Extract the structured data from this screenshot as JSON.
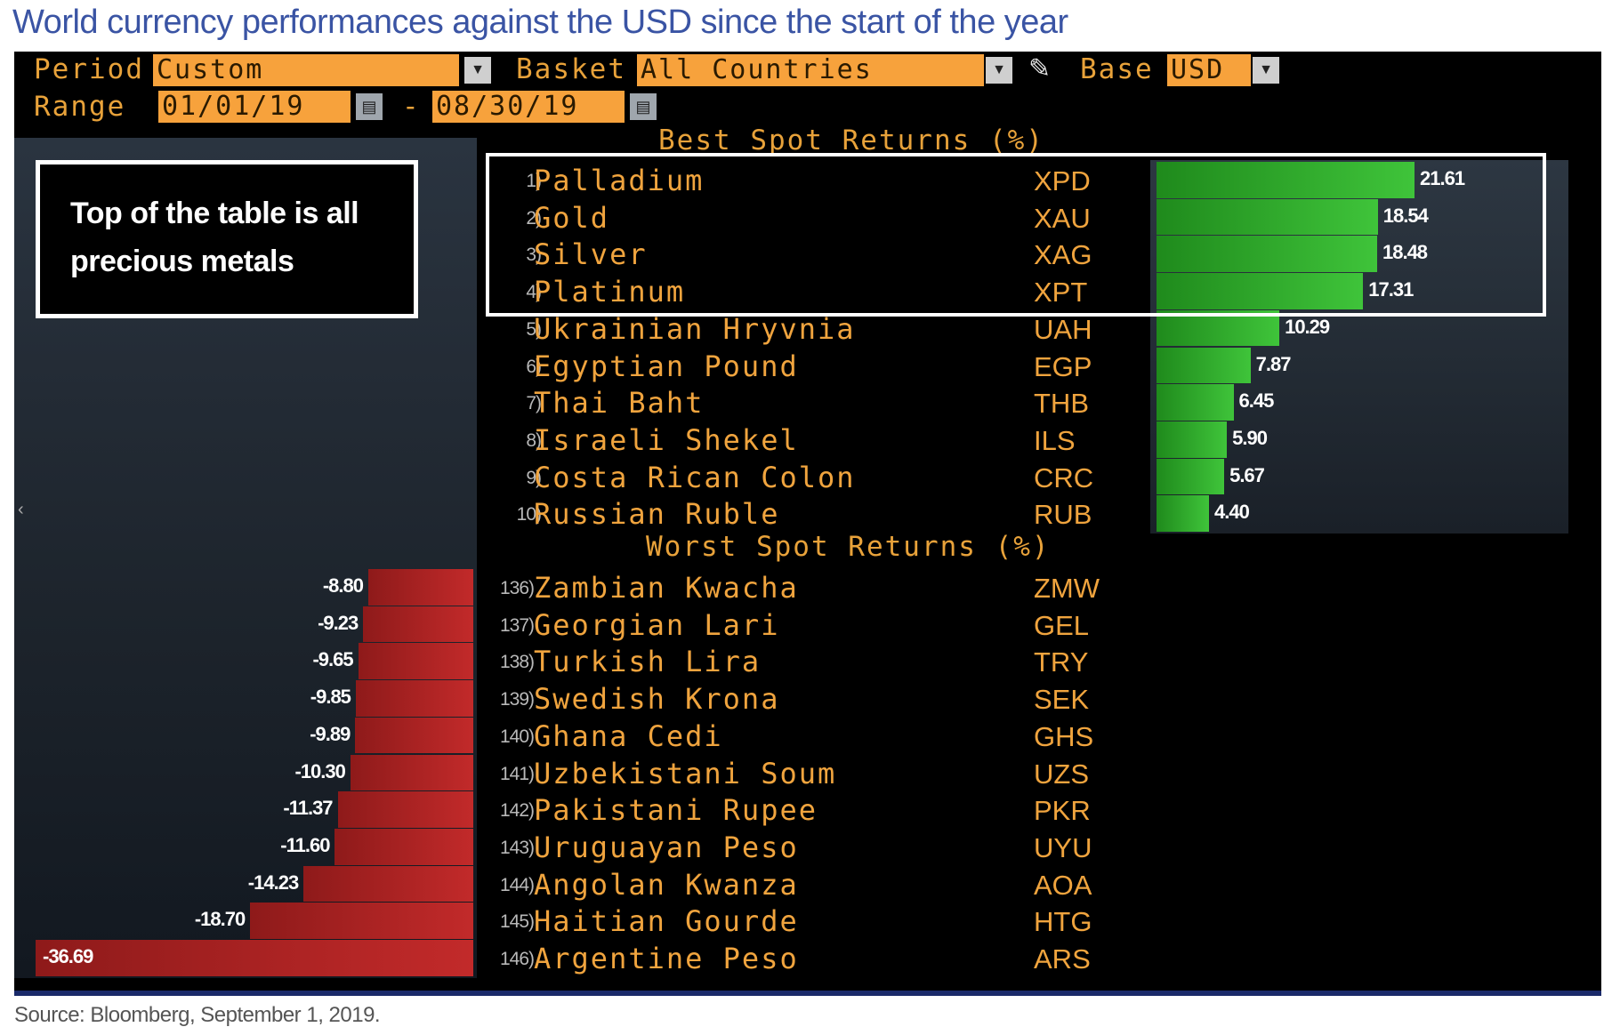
{
  "title": "World currency performances against the USD since the start of the year",
  "toolbar": {
    "period_label": "Period",
    "period_value": "Custom",
    "basket_label": "Basket",
    "basket_value": "All Countries",
    "base_label": "Base",
    "base_value": "USD",
    "range_label": "Range",
    "range_start": "01/01/19",
    "range_sep": "-",
    "range_end": "08/30/19"
  },
  "best": {
    "heading": "Best Spot Returns (%)",
    "rows": [
      {
        "rank": "1)",
        "name": "Palladium",
        "code": "XPD",
        "value": "21.61",
        "num": 21.61
      },
      {
        "rank": "2)",
        "name": "Gold",
        "code": "XAU",
        "value": "18.54",
        "num": 18.54
      },
      {
        "rank": "3)",
        "name": "Silver",
        "code": "XAG",
        "value": "18.48",
        "num": 18.48
      },
      {
        "rank": "4)",
        "name": "Platinum",
        "code": "XPT",
        "value": "17.31",
        "num": 17.31
      },
      {
        "rank": "5)",
        "name": "Ukrainian Hryvnia",
        "code": "UAH",
        "value": "10.29",
        "num": 10.29
      },
      {
        "rank": "6)",
        "name": "Egyptian Pound",
        "code": "EGP",
        "value": "7.87",
        "num": 7.87
      },
      {
        "rank": "7)",
        "name": "Thai Baht",
        "code": "THB",
        "value": "6.45",
        "num": 6.45
      },
      {
        "rank": "8)",
        "name": "Israeli Shekel",
        "code": "ILS",
        "value": "5.90",
        "num": 5.9
      },
      {
        "rank": "9)",
        "name": "Costa Rican Colon",
        "code": "CRC",
        "value": "5.67",
        "num": 5.67
      },
      {
        "rank": "10)",
        "name": "Russian Ruble",
        "code": "RUB",
        "value": "4.40",
        "num": 4.4
      }
    ]
  },
  "worst": {
    "heading": "Worst Spot Returns (%)",
    "rows": [
      {
        "rank": "136)",
        "name": "Zambian Kwacha",
        "code": "ZMW",
        "value": "-8.80",
        "num": -8.8
      },
      {
        "rank": "137)",
        "name": "Georgian Lari",
        "code": "GEL",
        "value": "-9.23",
        "num": -9.23
      },
      {
        "rank": "138)",
        "name": "Turkish Lira",
        "code": "TRY",
        "value": "-9.65",
        "num": -9.65
      },
      {
        "rank": "139)",
        "name": "Swedish Krona",
        "code": "SEK",
        "value": "-9.85",
        "num": -9.85
      },
      {
        "rank": "140)",
        "name": "Ghana Cedi",
        "code": "GHS",
        "value": "-9.89",
        "num": -9.89
      },
      {
        "rank": "141)",
        "name": "Uzbekistani Soum",
        "code": "UZS",
        "value": "-10.30",
        "num": -10.3
      },
      {
        "rank": "142)",
        "name": "Pakistani Rupee",
        "code": "PKR",
        "value": "-11.37",
        "num": -11.37
      },
      {
        "rank": "143)",
        "name": "Uruguayan Peso",
        "code": "UYU",
        "value": "-11.60",
        "num": -11.6
      },
      {
        "rank": "144)",
        "name": "Angolan Kwanza",
        "code": "AOA",
        "value": "-14.23",
        "num": -14.23
      },
      {
        "rank": "145)",
        "name": "Haitian Gourde",
        "code": "HTG",
        "value": "-18.70",
        "num": -18.7
      },
      {
        "rank": "146)",
        "name": "Argentine Peso",
        "code": "ARS",
        "value": "-36.69",
        "num": -36.69
      }
    ]
  },
  "callout": {
    "text": "Top of the table is all precious metals"
  },
  "source": "Source: Bloomberg, September 1, 2019.",
  "colors": {
    "title": "#3a54a4",
    "orange": "#f0a43e",
    "positive_bar": "#3fc43a",
    "negative_bar": "#c22a2a"
  },
  "icons": [
    "chevron-down-icon",
    "calendar-icon",
    "pencil-icon"
  ]
}
